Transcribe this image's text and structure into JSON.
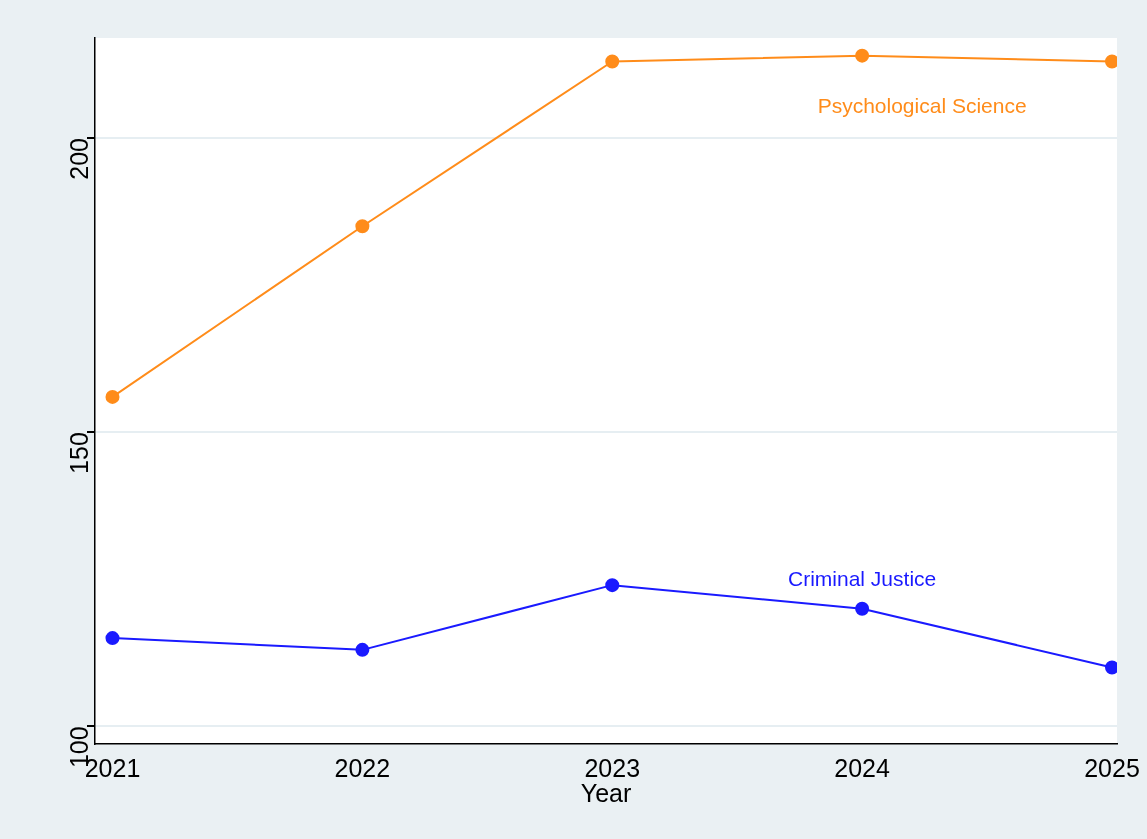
{
  "chart_data": {
    "type": "line",
    "xlabel": "Year",
    "x": [
      2021,
      2022,
      2023,
      2024,
      2025
    ],
    "xlim": [
      2020.93,
      2025.02
    ],
    "xticks": [
      2021,
      2022,
      2023,
      2024,
      2025
    ],
    "ylim": [
      97,
      217
    ],
    "yticks": [
      100,
      150,
      200
    ],
    "grid": "y",
    "legend": false,
    "marker": "circle",
    "line_style": "solid",
    "series": [
      {
        "name": "Psychological Science",
        "color": "#ff8c1a",
        "values": [
          156,
          185,
          213,
          214,
          213
        ]
      },
      {
        "name": "Criminal Justice",
        "color": "#1a1aff",
        "values": [
          115,
          113,
          124,
          120,
          110
        ]
      }
    ]
  }
}
